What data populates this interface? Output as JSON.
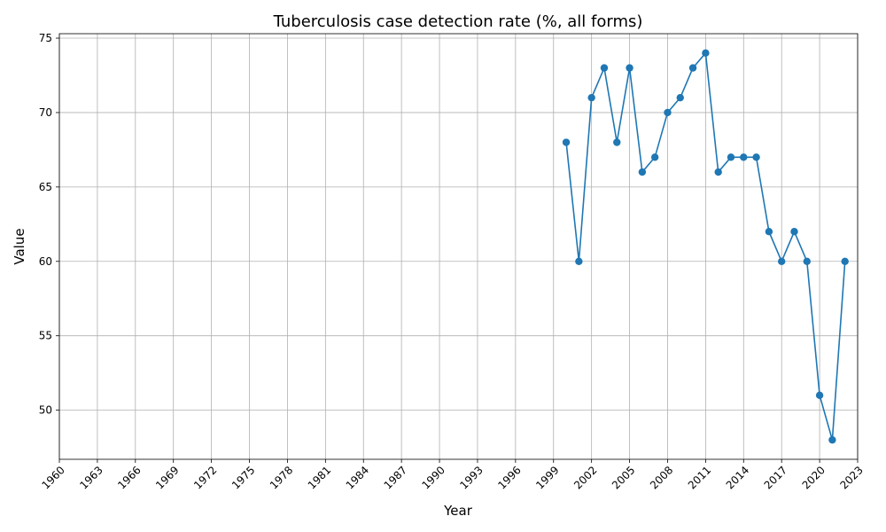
{
  "chart_data": {
    "type": "line",
    "title": "Tuberculosis case detection rate (%, all forms)",
    "xlabel": "Year",
    "ylabel": "Value",
    "xlim": [
      1960,
      2023
    ],
    "ylim": [
      46.7,
      75.3
    ],
    "x_ticks": [
      "1960",
      "1963",
      "1966",
      "1969",
      "1972",
      "1975",
      "1978",
      "1981",
      "1984",
      "1987",
      "1990",
      "1993",
      "1996",
      "1999",
      "2002",
      "2005",
      "2008",
      "2011",
      "2014",
      "2017",
      "2020",
      "2023"
    ],
    "y_ticks": [
      "50",
      "55",
      "60",
      "65",
      "70",
      "75"
    ],
    "grid": true,
    "legend": "none",
    "color": "#1f77b4",
    "series": [
      {
        "x": [
          2000,
          2001,
          2002,
          2003,
          2004,
          2005,
          2006,
          2007,
          2008,
          2009,
          2010,
          2011,
          2012,
          2013,
          2014,
          2015,
          2016,
          2017,
          2018,
          2019,
          2020,
          2021,
          2022
        ],
        "values": [
          68,
          60,
          71,
          73,
          68,
          73,
          66,
          67,
          70,
          71,
          73,
          74,
          66,
          67,
          67,
          67,
          62,
          60,
          62,
          60,
          51,
          48,
          60
        ]
      }
    ]
  }
}
